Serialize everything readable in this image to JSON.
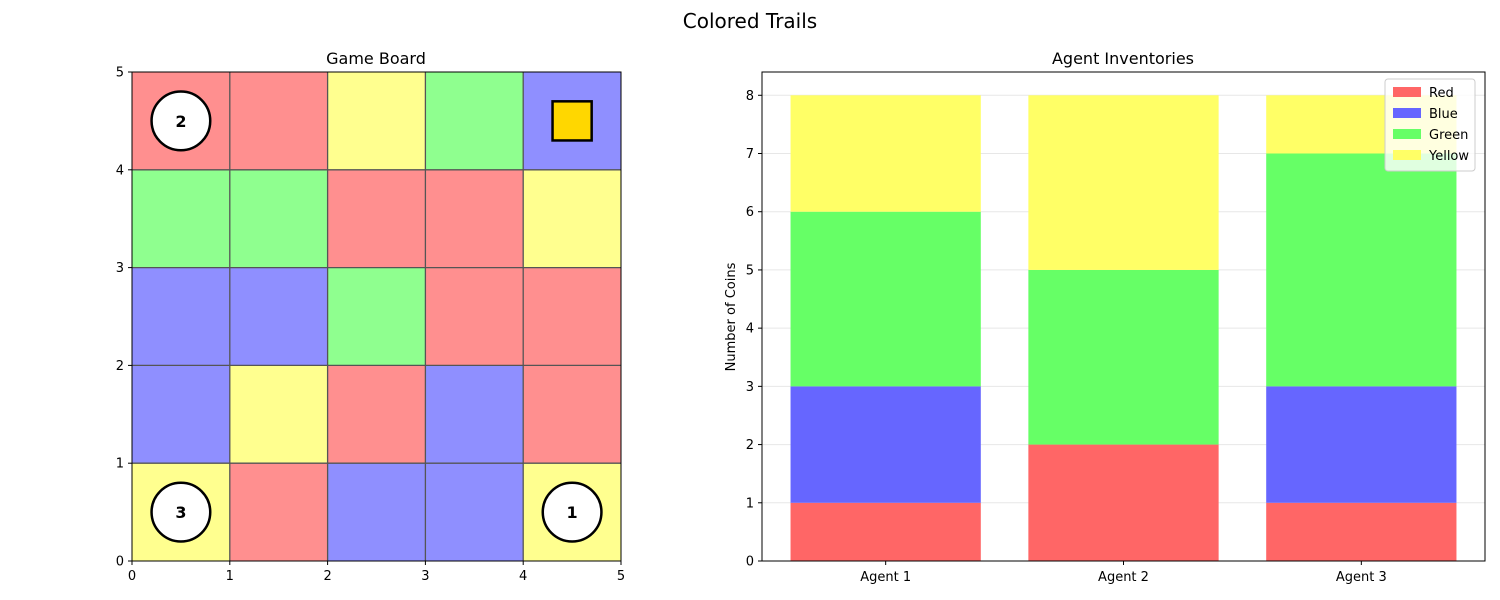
{
  "figure": {
    "title": "Colored Trails"
  },
  "board": {
    "title": "Game Board",
    "size": 5,
    "x_ticks": [
      "0",
      "1",
      "2",
      "3",
      "4",
      "5"
    ],
    "y_ticks": [
      "0",
      "1",
      "2",
      "3",
      "4",
      "5"
    ],
    "colors": {
      "red": "#ff8f8f",
      "blue": "#8f8fff",
      "green": "#8fff8f",
      "yellow": "#ffff8f"
    },
    "grid_rows_bottom_to_top": [
      [
        "yellow",
        "red",
        "blue",
        "blue",
        "yellow"
      ],
      [
        "blue",
        "yellow",
        "red",
        "blue",
        "red"
      ],
      [
        "blue",
        "blue",
        "green",
        "red",
        "red"
      ],
      [
        "green",
        "green",
        "red",
        "red",
        "yellow"
      ],
      [
        "red",
        "red",
        "yellow",
        "green",
        "blue"
      ]
    ],
    "agents": [
      {
        "label": "1",
        "col": 4,
        "row": 0
      },
      {
        "label": "2",
        "col": 0,
        "row": 4
      },
      {
        "label": "3",
        "col": 0,
        "row": 0
      }
    ],
    "goal": {
      "col": 4,
      "row": 4,
      "color": "#ffd700"
    }
  },
  "chart_data": {
    "type": "bar",
    "stacked": true,
    "title": "Agent Inventories",
    "xlabel": "",
    "ylabel": "Number of Coins",
    "categories": [
      "Agent 1",
      "Agent 2",
      "Agent 3"
    ],
    "ylim": [
      0,
      8.4
    ],
    "y_ticks": [
      0,
      1,
      2,
      3,
      4,
      5,
      6,
      7,
      8
    ],
    "grid": "y",
    "legend_position": "top-right",
    "series": [
      {
        "name": "Red",
        "values": [
          1,
          2,
          1
        ],
        "color": "#ff6666"
      },
      {
        "name": "Blue",
        "values": [
          2,
          0,
          2
        ],
        "color": "#6666ff"
      },
      {
        "name": "Green",
        "values": [
          3,
          3,
          4
        ],
        "color": "#66ff66"
      },
      {
        "name": "Yellow",
        "values": [
          2,
          3,
          1
        ],
        "color": "#ffff66"
      }
    ]
  }
}
